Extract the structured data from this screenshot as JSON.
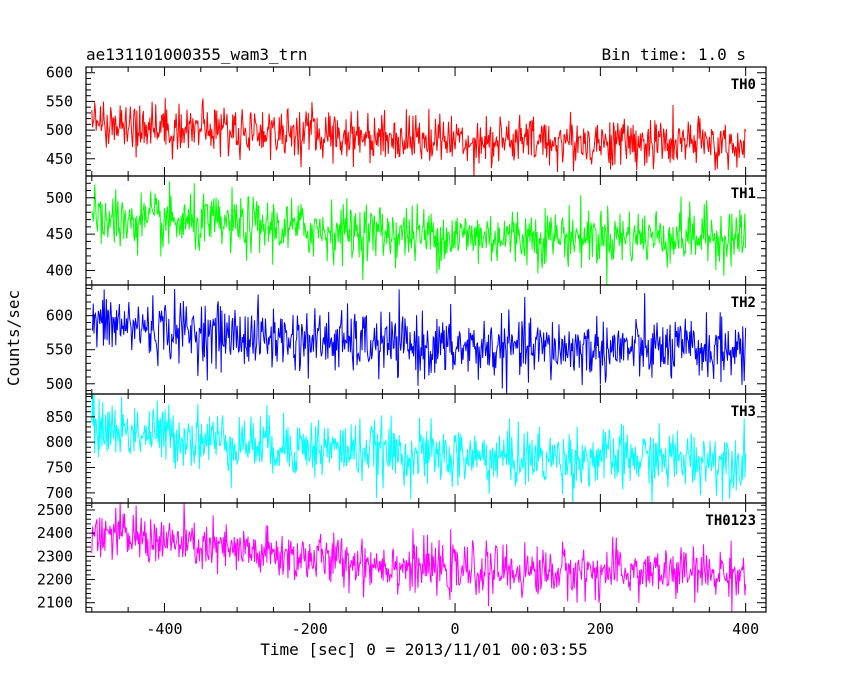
{
  "chart_data": {
    "type": "line",
    "title": "ae131101000355_wam3_trn",
    "subtitle": "Bin time: 1.0 s",
    "xlabel": "Time [sec] 0 = 2013/11/01 00:03:55",
    "ylabel": "Counts/sec",
    "xlim": [
      -508,
      428
    ],
    "xticks": [
      -400,
      -200,
      0,
      200,
      400
    ],
    "grid": false,
    "bin_time_s": 1.0,
    "x_start": -500,
    "x_end": 400,
    "panels": [
      {
        "label": "TH0",
        "color": "#ff0000",
        "ylim": [
          420,
          610
        ],
        "yticks": [
          450,
          500,
          550,
          600
        ],
        "trend": [
          {
            "x": -500,
            "y": 512
          },
          {
            "x": -300,
            "y": 500
          },
          {
            "x": 0,
            "y": 483
          },
          {
            "x": 400,
            "y": 475
          }
        ],
        "noise_sigma": 22
      },
      {
        "label": "TH1",
        "color": "#00ff00",
        "ylim": [
          380,
          530
        ],
        "yticks": [
          400,
          450,
          500
        ],
        "trend": [
          {
            "x": -500,
            "y": 470
          },
          {
            "x": -300,
            "y": 462
          },
          {
            "x": 0,
            "y": 447
          },
          {
            "x": 400,
            "y": 447
          }
        ],
        "noise_sigma": 20
      },
      {
        "label": "TH2",
        "color": "#0000ff",
        "ylim": [
          485,
          645
        ],
        "yticks": [
          500,
          550,
          600
        ],
        "trend": [
          {
            "x": -500,
            "y": 590
          },
          {
            "x": -300,
            "y": 570
          },
          {
            "x": 0,
            "y": 552
          },
          {
            "x": 400,
            "y": 550
          }
        ],
        "noise_sigma": 23
      },
      {
        "label": "TH3",
        "color": "#00ffff",
        "ylim": [
          680,
          895
        ],
        "yticks": [
          700,
          750,
          800,
          850
        ],
        "trend": [
          {
            "x": -500,
            "y": 830
          },
          {
            "x": -300,
            "y": 800
          },
          {
            "x": 0,
            "y": 770
          },
          {
            "x": 400,
            "y": 765
          }
        ],
        "noise_sigma": 30
      },
      {
        "label": "TH0123",
        "color": "#ff00ff",
        "ylim": [
          2060,
          2530
        ],
        "yticks": [
          2100,
          2200,
          2300,
          2400,
          2500
        ],
        "trend": [
          {
            "x": -500,
            "y": 2410
          },
          {
            "x": -300,
            "y": 2320
          },
          {
            "x": 0,
            "y": 2240
          },
          {
            "x": 400,
            "y": 2225
          }
        ],
        "noise_sigma": 55
      }
    ]
  }
}
